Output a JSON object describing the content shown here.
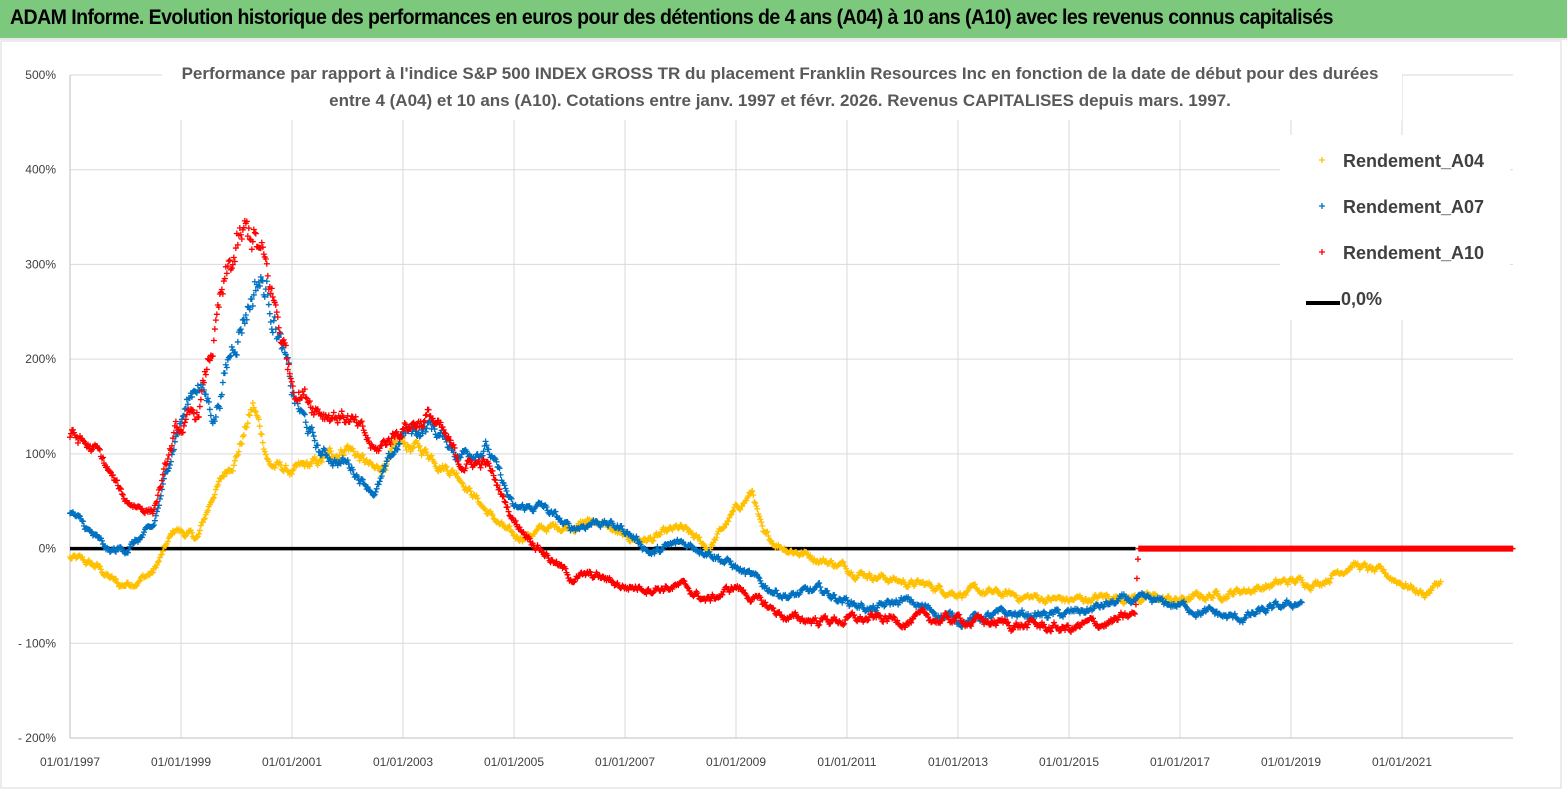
{
  "banner": {
    "title": "ADAM Informe. Evolution historique des performances en euros pour des détentions de 4 ans (A04) à 10 ans (A10) avec les revenus connus capitalisés"
  },
  "chart_data": {
    "type": "scatter",
    "title_line1": "Performance par rapport à l'indice S&P 500 INDEX GROSS TR  du placement Franklin Resources Inc en fonction de la date de début pour des durées",
    "title_line2": "entre 4 (A04) et 10 ans (A10). Cotations entre janv. 1997 et févr. 2026. Revenus CAPITALISES depuis mars. 1997.",
    "xlabel": "",
    "ylabel": "",
    "xlim": [
      1997.0,
      2023.0
    ],
    "ylim": [
      -200,
      500
    ],
    "y_ticks": [
      500,
      400,
      300,
      200,
      100,
      0,
      -100,
      -200
    ],
    "y_tick_labels": [
      "500%",
      "400%",
      "300%",
      "200%",
      "100%",
      "0%",
      "- 100%",
      "- 200%"
    ],
    "x_ticks": [
      1997,
      1999,
      2001,
      2003,
      2005,
      2007,
      2009,
      2011,
      2013,
      2015,
      2017,
      2019,
      2021
    ],
    "x_tick_labels": [
      "01/01/1997",
      "01/01/1999",
      "01/01/2001",
      "01/01/2003",
      "01/01/2005",
      "01/01/2007",
      "01/01/2009",
      "01/01/2011",
      "01/01/2013",
      "01/01/2015",
      "01/01/2017",
      "01/01/2019",
      "01/01/2021"
    ],
    "grid": true,
    "legend_position": "top-right",
    "series": [
      {
        "name": "Rendement_A04",
        "color": "#ffc000",
        "marker": "plus",
        "points": [
          [
            1997.0,
            -10
          ],
          [
            1997.5,
            -20
          ],
          [
            1997.9,
            -40
          ],
          [
            1998.5,
            -25
          ],
          [
            1998.9,
            20
          ],
          [
            1999.3,
            10
          ],
          [
            1999.6,
            60
          ],
          [
            2000.0,
            100
          ],
          [
            2000.3,
            150
          ],
          [
            2000.6,
            90
          ],
          [
            2001.0,
            80
          ],
          [
            2001.5,
            90
          ],
          [
            2002.0,
            110
          ],
          [
            2002.5,
            80
          ],
          [
            2003.0,
            110
          ],
          [
            2003.5,
            100
          ],
          [
            2004.0,
            80
          ],
          [
            2004.5,
            40
          ],
          [
            2005.0,
            10
          ],
          [
            2005.5,
            20
          ],
          [
            2006.0,
            25
          ],
          [
            2006.5,
            30
          ],
          [
            2007.0,
            10
          ],
          [
            2007.5,
            10
          ],
          [
            2008.0,
            20
          ],
          [
            2008.5,
            0
          ],
          [
            2009.0,
            40
          ],
          [
            2009.3,
            60
          ],
          [
            2009.5,
            10
          ],
          [
            2010.0,
            0
          ],
          [
            2010.5,
            -10
          ],
          [
            2011.0,
            -20
          ],
          [
            2012.0,
            -35
          ],
          [
            2013.0,
            -45
          ],
          [
            2014.0,
            -50
          ],
          [
            2015.0,
            -55
          ],
          [
            2016.0,
            -50
          ],
          [
            2017.0,
            -55
          ],
          [
            2018.0,
            -45
          ],
          [
            2019.0,
            -35
          ],
          [
            2019.5,
            -35
          ],
          [
            2020.1,
            -15
          ],
          [
            2020.5,
            -25
          ],
          [
            2021.0,
            -35
          ],
          [
            2021.4,
            -48
          ],
          [
            2021.7,
            -35
          ]
        ]
      },
      {
        "name": "Rendement_A07",
        "color": "#0070c0",
        "marker": "plus",
        "points": [
          [
            1997.0,
            40
          ],
          [
            1997.3,
            20
          ],
          [
            1997.7,
            -5
          ],
          [
            1998.0,
            0
          ],
          [
            1998.5,
            20
          ],
          [
            1998.9,
            120
          ],
          [
            1999.3,
            180
          ],
          [
            1999.6,
            140
          ],
          [
            2000.0,
            230
          ],
          [
            2000.4,
            290
          ],
          [
            2000.7,
            250
          ],
          [
            2001.0,
            160
          ],
          [
            2001.5,
            100
          ],
          [
            2002.0,
            90
          ],
          [
            2002.5,
            60
          ],
          [
            2003.0,
            120
          ],
          [
            2003.5,
            130
          ],
          [
            2004.0,
            100
          ],
          [
            2004.5,
            110
          ],
          [
            2005.0,
            40
          ],
          [
            2005.5,
            45
          ],
          [
            2006.0,
            20
          ],
          [
            2006.5,
            30
          ],
          [
            2007.0,
            20
          ],
          [
            2007.5,
            -5
          ],
          [
            2008.0,
            5
          ],
          [
            2008.5,
            0
          ],
          [
            2009.0,
            -20
          ],
          [
            2009.5,
            -40
          ],
          [
            2010.0,
            -50
          ],
          [
            2010.5,
            -45
          ],
          [
            2011.0,
            -55
          ],
          [
            2011.5,
            -65
          ],
          [
            2012.0,
            -55
          ],
          [
            2012.5,
            -65
          ],
          [
            2013.0,
            -75
          ],
          [
            2014.0,
            -70
          ],
          [
            2015.0,
            -70
          ],
          [
            2016.0,
            -55
          ],
          [
            2017.0,
            -60
          ],
          [
            2018.0,
            -75
          ],
          [
            2019.0,
            -60
          ],
          [
            2019.2,
            -55
          ]
        ]
      },
      {
        "name": "Rendement_A10",
        "color": "#ff0000",
        "marker": "plus",
        "points": [
          [
            1997.0,
            120
          ],
          [
            1997.5,
            100
          ],
          [
            1998.0,
            50
          ],
          [
            1998.5,
            40
          ],
          [
            1998.9,
            120
          ],
          [
            1999.3,
            140
          ],
          [
            1999.7,
            250
          ],
          [
            2000.0,
            310
          ],
          [
            2000.3,
            330
          ],
          [
            2000.7,
            250
          ],
          [
            2001.0,
            180
          ],
          [
            2001.5,
            150
          ],
          [
            2002.0,
            140
          ],
          [
            2002.5,
            100
          ],
          [
            2003.0,
            130
          ],
          [
            2003.5,
            140
          ],
          [
            2004.0,
            90
          ],
          [
            2004.5,
            90
          ],
          [
            2005.0,
            30
          ],
          [
            2005.5,
            0
          ],
          [
            2006.0,
            -30
          ],
          [
            2006.5,
            -30
          ],
          [
            2007.0,
            -40
          ],
          [
            2008.0,
            -40
          ],
          [
            2008.5,
            -55
          ],
          [
            2009.0,
            -40
          ],
          [
            2009.5,
            -60
          ],
          [
            2010.0,
            -75
          ],
          [
            2011.0,
            -75
          ],
          [
            2012.0,
            -75
          ],
          [
            2013.0,
            -75
          ],
          [
            2014.0,
            -80
          ],
          [
            2015.0,
            -85
          ],
          [
            2016.0,
            -75
          ],
          [
            2016.2,
            -70
          ],
          [
            2016.25,
            0
          ],
          [
            2023.0,
            0
          ]
        ]
      },
      {
        "name": "0,0%",
        "color": "#000000",
        "marker": "line",
        "points": [
          [
            1997.0,
            0
          ],
          [
            2016.2,
            0
          ]
        ]
      }
    ]
  }
}
